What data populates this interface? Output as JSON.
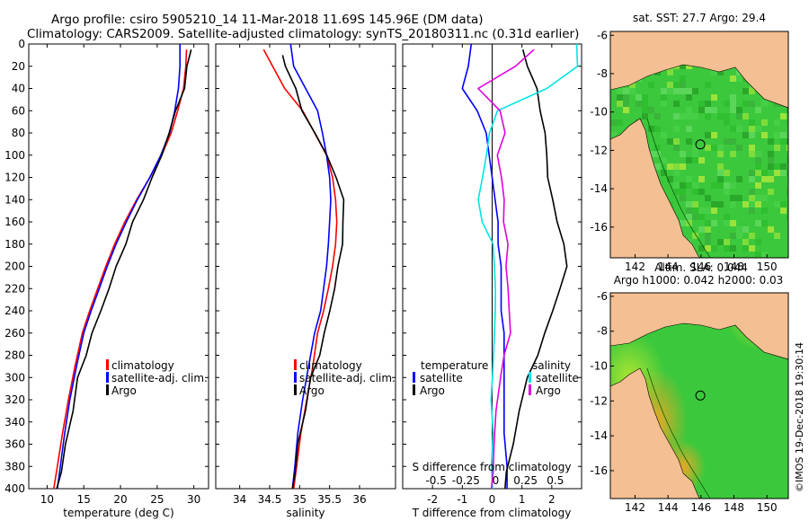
{
  "header": {
    "line1": "Argo profile: csiro 5905210_14 11-Mar-2018 11.69S 145.96E (DM data)",
    "line2": "Climatology: CARS2009. Satellite-adjusted climatology: synTS_20180311.nc (0.31d earlier)"
  },
  "watermark": "©IMOS 19-Dec-2018 19:30:14",
  "colors": {
    "climatology": "#ff0000",
    "satellite": "#0000ff",
    "argo": "#000000",
    "sat_salinity": "#00e5e5",
    "clim_salinity": "#e000e0",
    "land": "#f4bf92",
    "ocean_green": "#3cc83c"
  },
  "chart_data": [
    {
      "type": "line",
      "id": "temperature",
      "title": "",
      "xlabel": "temperature (deg C)",
      "ylabel": "",
      "xlim": [
        7.5,
        32
      ],
      "ylim": [
        400,
        0
      ],
      "xticks": [
        10,
        15,
        20,
        25,
        30
      ],
      "yticks": [
        0,
        20,
        40,
        60,
        80,
        100,
        120,
        140,
        160,
        180,
        200,
        220,
        240,
        260,
        280,
        300,
        320,
        340,
        360,
        380,
        400
      ],
      "legend": [
        "climatology",
        "satellite-adj. clim.",
        "Argo"
      ],
      "series": [
        {
          "name": "climatology",
          "color": "#ff0000",
          "x": [
            29.0,
            28.9,
            28.6,
            27.8,
            26.9,
            25.6,
            24.0,
            22.2,
            20.6,
            19.2,
            18.0,
            16.9,
            15.8,
            14.8,
            13.8,
            12.9,
            12.1,
            11.4,
            10.9
          ],
          "depth": [
            5,
            20,
            40,
            60,
            80,
            100,
            120,
            140,
            160,
            180,
            200,
            220,
            240,
            260,
            290,
            320,
            350,
            380,
            400
          ]
        },
        {
          "name": "satellite-adj. clim.",
          "color": "#0000ff",
          "x": [
            28.1,
            28.1,
            27.9,
            27.4,
            26.7,
            25.5,
            24.0,
            22.3,
            20.8,
            19.4,
            18.2,
            17.1,
            16.0,
            15.0,
            14.0,
            13.1,
            12.4,
            11.8,
            11.4
          ],
          "depth": [
            0,
            20,
            40,
            60,
            80,
            100,
            120,
            140,
            160,
            180,
            200,
            220,
            240,
            260,
            290,
            320,
            350,
            380,
            400
          ]
        },
        {
          "name": "Argo",
          "color": "#000000",
          "x": [
            29.5,
            29.2,
            28.6,
            27.6,
            26.6,
            25.6,
            24.4,
            23.0,
            21.8,
            20.6,
            19.5,
            18.4,
            17.3,
            16.2,
            15.2,
            14.3,
            13.4,
            12.6,
            11.9,
            11.3
          ],
          "depth": [
            5,
            20,
            40,
            60,
            80,
            100,
            120,
            140,
            160,
            180,
            200,
            220,
            240,
            260,
            280,
            300,
            330,
            360,
            385,
            400
          ]
        }
      ]
    },
    {
      "type": "line",
      "id": "salinity",
      "title": "",
      "xlabel": "salinity",
      "ylabel": "",
      "xlim": [
        33.6,
        36.6
      ],
      "ylim": [
        400,
        0
      ],
      "xticks": [
        34,
        34.5,
        35,
        35.5,
        36
      ],
      "legend": [
        "climatology",
        "satellite-adj. clim.",
        "Argo"
      ],
      "series": [
        {
          "name": "climatology",
          "color": "#ff0000",
          "x": [
            34.4,
            34.55,
            34.75,
            35.05,
            35.25,
            35.45,
            35.55,
            35.6,
            35.62,
            35.6,
            35.55,
            35.48,
            35.4,
            35.3,
            35.22,
            35.12,
            35.02,
            34.95,
            34.9
          ],
          "depth": [
            5,
            20,
            40,
            60,
            80,
            100,
            120,
            140,
            160,
            180,
            200,
            220,
            240,
            260,
            290,
            320,
            350,
            380,
            400
          ]
        },
        {
          "name": "satellite-adj. clim.",
          "color": "#0000ff",
          "x": [
            34.85,
            34.9,
            35.1,
            35.3,
            35.38,
            35.45,
            35.5,
            35.52,
            35.5,
            35.48,
            35.45,
            35.4,
            35.35,
            35.25,
            35.15,
            35.05,
            34.97,
            34.92,
            34.88
          ],
          "depth": [
            0,
            20,
            40,
            60,
            80,
            100,
            120,
            140,
            160,
            180,
            200,
            220,
            240,
            260,
            290,
            320,
            350,
            380,
            400
          ]
        },
        {
          "name": "Argo",
          "color": "#000000",
          "x": [
            34.7,
            34.78,
            34.92,
            35.05,
            35.25,
            35.45,
            35.62,
            35.72,
            35.74,
            35.7,
            35.65,
            35.58,
            35.5,
            35.42,
            35.32,
            35.2,
            35.08,
            34.98,
            34.92,
            34.88
          ],
          "depth": [
            10,
            20,
            40,
            60,
            80,
            100,
            120,
            140,
            160,
            180,
            200,
            220,
            240,
            260,
            280,
            300,
            330,
            360,
            385,
            400
          ]
        }
      ]
    },
    {
      "type": "line",
      "id": "difference",
      "title": "",
      "xlabel": "T difference from climatology",
      "xlabel2": "S difference from climatology",
      "ylabel": "",
      "xlim": [
        -3,
        3
      ],
      "ylim": [
        400,
        0
      ],
      "xticks": [
        -2,
        -1,
        0,
        1,
        2
      ],
      "xticks2_labels": [
        "-0.5",
        "-0.25",
        "0",
        "0.25",
        "0.5"
      ],
      "legend_left_title": "temperature",
      "legend_left": [
        "satellite",
        "Argo"
      ],
      "legend_right_title": "salinity",
      "legend_right": [
        "satellite",
        "Argo"
      ],
      "series": [
        {
          "name": "T satellite",
          "color": "#0000ff",
          "x": [
            -0.7,
            -0.8,
            -1.0,
            -0.5,
            -0.2,
            -0.1,
            0.0,
            0.1,
            0.2,
            0.2,
            0.3,
            0.3,
            0.3,
            0.4,
            0.4,
            0.4,
            0.4,
            0.5,
            0.5
          ],
          "depth": [
            0,
            20,
            40,
            60,
            80,
            100,
            120,
            140,
            160,
            180,
            200,
            220,
            240,
            260,
            290,
            320,
            350,
            380,
            400
          ]
        },
        {
          "name": "T Argo",
          "color": "#000000",
          "x": [
            1.0,
            1.2,
            1.5,
            1.6,
            1.8,
            1.8,
            1.9,
            2.0,
            2.2,
            2.4,
            2.5,
            2.3,
            2.0,
            1.8,
            1.5,
            1.2,
            0.9,
            0.7,
            0.5,
            0.4
          ],
          "depth": [
            5,
            20,
            40,
            60,
            80,
            100,
            120,
            140,
            160,
            180,
            200,
            220,
            240,
            260,
            280,
            300,
            330,
            360,
            385,
            400
          ]
        },
        {
          "name": "S satellite",
          "color": "#00e5e5",
          "x": [
            2.8,
            2.9,
            1.8,
            0.2,
            -0.1,
            -0.2,
            -0.3,
            -0.5,
            -0.3,
            0.0,
            0.1,
            0.1,
            0.1,
            0.1,
            0.0,
            0.0,
            0.0,
            0.0,
            0.0
          ],
          "depth": [
            0,
            20,
            40,
            60,
            80,
            100,
            120,
            140,
            160,
            180,
            200,
            220,
            240,
            260,
            290,
            320,
            350,
            380,
            400
          ]
        },
        {
          "name": "S Argo",
          "color": "#e000e0",
          "x": [
            1.4,
            0.8,
            -0.5,
            0.3,
            0.4,
            0.2,
            0.3,
            0.4,
            0.4,
            0.5,
            0.5,
            0.5,
            0.6,
            0.6,
            0.4,
            0.3,
            0.1,
            0.1,
            0.0,
            0.0
          ],
          "depth": [
            5,
            20,
            40,
            60,
            80,
            100,
            120,
            140,
            160,
            180,
            200,
            220,
            240,
            260,
            280,
            300,
            330,
            360,
            385,
            400
          ]
        }
      ]
    },
    {
      "type": "heatmap",
      "id": "sst-map",
      "title": "sat. SST: 27.7 Argo: 29.4",
      "xticks": [
        142,
        144,
        146,
        148,
        150
      ],
      "yticks": [
        -6,
        -8,
        -10,
        -12,
        -14,
        -16
      ],
      "xlim": [
        140.5,
        151.3
      ],
      "ylim": [
        -17.6,
        -5.8
      ],
      "argo_position": [
        145.96,
        -11.69
      ]
    },
    {
      "type": "heatmap",
      "id": "sla-map",
      "title": "Altim. SLA: 0.044",
      "subtitle": "Argo h1000: 0.042 h2000: 0.03",
      "xticks": [
        142,
        144,
        146,
        148,
        150
      ],
      "yticks": [
        -6,
        -8,
        -10,
        -12,
        -14,
        -16
      ],
      "xlim": [
        140.5,
        151.3
      ],
      "ylim": [
        -17.6,
        -5.8
      ],
      "argo_position": [
        145.96,
        -11.69
      ]
    }
  ]
}
